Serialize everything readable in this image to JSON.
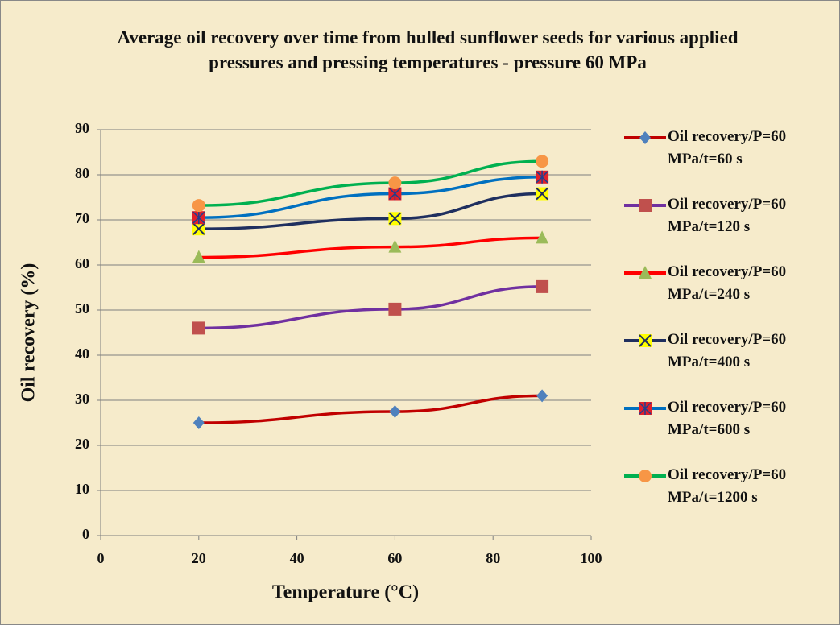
{
  "chart_data": {
    "type": "line",
    "title": "Average oil recovery over time from hulled sunflower seeds for various applied pressures and pressing temperatures - pressure 60 MPa",
    "x_label": "Temperature (°C)",
    "y_label": "Oil recovery (%)",
    "x": [
      20,
      60,
      90
    ],
    "series": [
      {
        "name": "Oil recovery/P=60 MPa/t=60 s",
        "color": "#c00000",
        "marker": "diamond",
        "marker_color": "#4f81bd",
        "values": [
          25,
          27.5,
          31
        ]
      },
      {
        "name": "Oil recovery/P=60 MPa/t=120 s",
        "color": "#7030a0",
        "marker": "square",
        "marker_color": "#c0504d",
        "values": [
          46,
          50.2,
          55.2
        ]
      },
      {
        "name": "Oil recovery/P=60 MPa/t=240 s",
        "color": "#ff0000",
        "marker": "triangle",
        "marker_color": "#9bbb59",
        "values": [
          61.7,
          64,
          66
        ]
      },
      {
        "name": "Oil recovery/P=60 MPa/t=400 s",
        "color": "#1f2f5f",
        "marker": "x",
        "marker_color": "#ffff00",
        "values": [
          68,
          70.3,
          75.8
        ]
      },
      {
        "name": "Oil recovery/P=60 MPa/t=600 s",
        "color": "#0070c0",
        "marker": "star-square",
        "marker_color": "#e0202a",
        "values": [
          70.5,
          75.8,
          79.5
        ]
      },
      {
        "name": "Oil recovery/P=60 MPa/t=1200 s",
        "color": "#00b050",
        "marker": "circle",
        "marker_color": "#f79646",
        "values": [
          73.2,
          78.2,
          83
        ]
      }
    ],
    "xlim": [
      0,
      100
    ],
    "xticks": [
      0,
      20,
      40,
      60,
      80,
      100
    ],
    "ylim": [
      0,
      90
    ],
    "yticks": [
      0,
      10,
      20,
      30,
      40,
      50,
      60,
      70,
      80,
      90
    ],
    "grid": true,
    "legend": "right"
  }
}
